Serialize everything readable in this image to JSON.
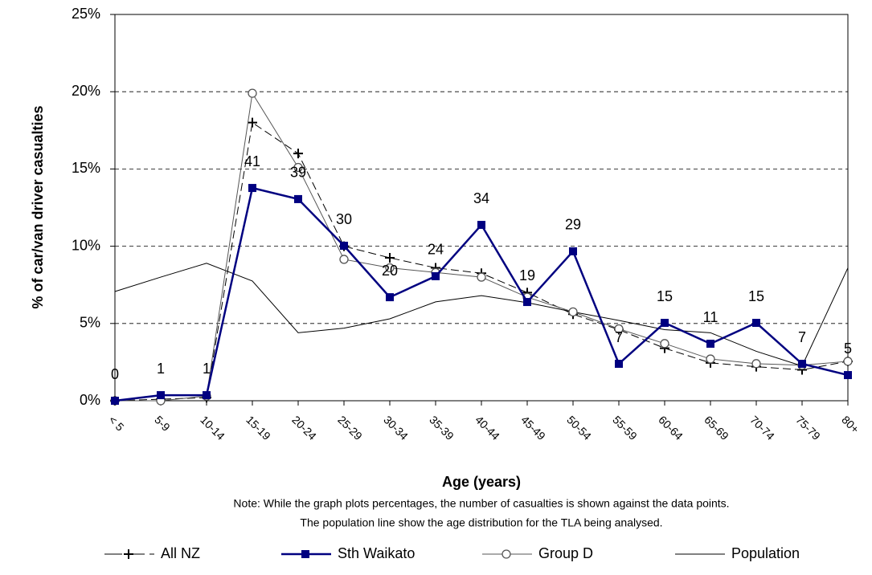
{
  "chart_data": {
    "type": "line",
    "y_label": "% of car/van driver casualties",
    "x_label": "Age (years)",
    "notes": [
      "Note: While the graph plots percentages, the number of casualties is shown against the data points.",
      "The population line  show the age distribution for the TLA being analysed."
    ],
    "categories": [
      "< 5",
      "5-9",
      "10-14",
      "15-19",
      "20-24",
      "25-29",
      "30-34",
      "35-39",
      "40-44",
      "45-49",
      "50-54",
      "55-59",
      "60-64",
      "65-69",
      "70-74",
      "75-79",
      "80+"
    ],
    "ylim": [
      0,
      25
    ],
    "yticks": [
      {
        "value": 0,
        "label": "0%"
      },
      {
        "value": 5,
        "label": "5%"
      },
      {
        "value": 10,
        "label": "10%"
      },
      {
        "value": 15,
        "label": "15%"
      },
      {
        "value": 20,
        "label": "20%"
      },
      {
        "value": 25,
        "label": "25%"
      }
    ],
    "grid": true,
    "series": [
      {
        "name": "All NZ",
        "color": "#000000",
        "marker": "plus",
        "dashed": true,
        "values": [
          0,
          0.1,
          0.2,
          18,
          16,
          10,
          9.25,
          8.6,
          8.25,
          7,
          5.6,
          4.6,
          3.4,
          2.45,
          2.2,
          2.0,
          2.55
        ]
      },
      {
        "name": "Sth Waikato",
        "color": "#000080",
        "marker": "square",
        "values": [
          0,
          0.36,
          0.36,
          13.77,
          13.05,
          10.03,
          6.7,
          8.06,
          11.38,
          6.39,
          9.67,
          2.39,
          5.04,
          3.69,
          5.04,
          2.39,
          1.66
        ],
        "casualty_counts": [
          0,
          1,
          1,
          41,
          39,
          30,
          20,
          24,
          34,
          19,
          29,
          7,
          15,
          11,
          15,
          7,
          5
        ]
      },
      {
        "name": "Group D",
        "color": "#555555",
        "marker": "circle",
        "values": [
          0,
          0,
          0.3,
          19.9,
          15.1,
          9.15,
          8.6,
          8.3,
          8.0,
          6.7,
          5.75,
          4.65,
          3.7,
          2.7,
          2.4,
          2.3,
          2.55
        ]
      },
      {
        "name": "Population",
        "color": "#000000",
        "marker": "none",
        "values": [
          7.07,
          8.0,
          8.9,
          7.75,
          4.4,
          4.7,
          5.3,
          6.4,
          6.8,
          6.35,
          5.75,
          5.2,
          4.6,
          4.4,
          3.2,
          2.25,
          8.6
        ]
      }
    ]
  }
}
